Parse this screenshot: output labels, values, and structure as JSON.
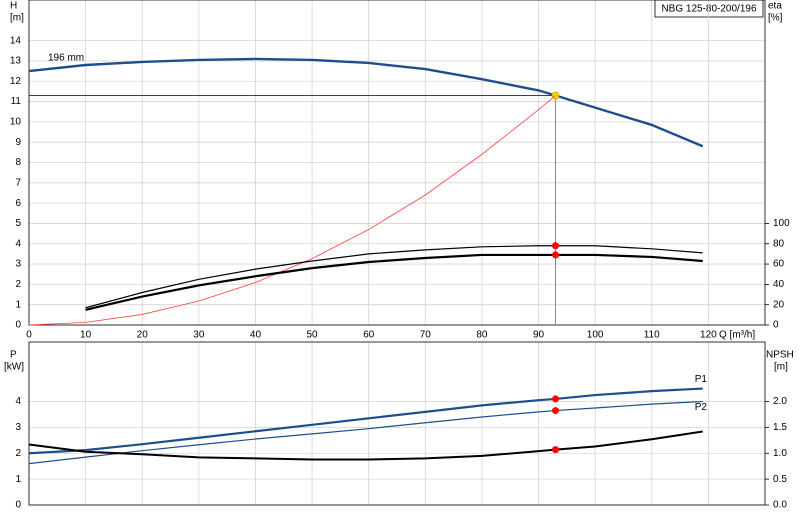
{
  "chart_data": [
    {
      "type": "line",
      "title": "NBG 125-80-200/196",
      "x_label": "Q [m³/h]",
      "y_label": "H",
      "y_unit": "[m]",
      "y2_label": "eta",
      "y2_unit": "[%]",
      "x": [
        0,
        10,
        20,
        30,
        40,
        50,
        60,
        70,
        80,
        90,
        93,
        100,
        110,
        119
      ],
      "xlim": [
        0,
        130
      ],
      "xticks": [
        0,
        10,
        20,
        30,
        40,
        50,
        60,
        70,
        80,
        90,
        100,
        110,
        120
      ],
      "ylim": [
        0,
        16
      ],
      "yticks": [
        0,
        1,
        2,
        3,
        4,
        5,
        6,
        7,
        8,
        9,
        10,
        11,
        12,
        13,
        14
      ],
      "y2lim": [
        0,
        320
      ],
      "y2ticks": [
        0,
        20,
        40,
        60,
        80,
        100
      ],
      "grid": true,
      "duty_point": 93,
      "series": [
        {
          "name": "196 mm",
          "color": "#1f4e8c",
          "line_width": 2.4,
          "marker_color": "#ffd700",
          "values": [
            12.5,
            12.8,
            12.95,
            13.05,
            13.1,
            13.05,
            12.9,
            12.6,
            12.1,
            11.55,
            11.3,
            10.7,
            9.85,
            8.8
          ]
        },
        {
          "color": "#ff4040",
          "line_width": 0.8,
          "values": [
            0,
            0.13,
            0.52,
            1.18,
            2.09,
            3.27,
            4.7,
            6.4,
            8.4,
            10.6,
            11.3,
            null,
            null,
            null
          ]
        },
        {
          "color": "#000000",
          "line_width": 1.2,
          "axis": "y2",
          "marker_color": "#ff0000",
          "values": [
            null,
            17,
            32,
            45,
            55,
            63,
            70,
            74,
            77,
            78,
            78,
            78,
            75,
            71
          ]
        },
        {
          "color": "#000000",
          "line_width": 2.2,
          "axis": "y2",
          "marker_color": "#ff0000",
          "values": [
            null,
            15,
            28,
            39,
            48,
            56,
            62,
            66,
            69,
            69,
            69,
            69,
            67,
            63
          ]
        }
      ]
    },
    {
      "type": "line",
      "y_label": "P",
      "y_unit": "[kW]",
      "y2_label": "NPSH",
      "y2_unit": "[m]",
      "x": [
        0,
        10,
        20,
        30,
        40,
        50,
        60,
        70,
        80,
        90,
        93,
        100,
        110,
        119
      ],
      "ylim": [
        0,
        6.3
      ],
      "yticks": [
        0,
        1,
        2,
        3,
        4
      ],
      "y2lim": [
        0,
        3.15
      ],
      "y2ticks": [
        {
          "value": 0,
          "label": "0.0"
        },
        0.5,
        {
          "value": 1,
          "label": "1.0"
        },
        1.5,
        {
          "value": 2,
          "label": "2.0"
        }
      ],
      "grid": true,
      "duty_point": 93,
      "series": [
        {
          "name": "P1",
          "color": "#1f4e8c",
          "line_width": 2.2,
          "marker_color": "#ff0000",
          "values": [
            2.0,
            2.12,
            2.35,
            2.6,
            2.85,
            3.1,
            3.35,
            3.6,
            3.85,
            4.05,
            4.1,
            4.25,
            4.4,
            4.5
          ]
        },
        {
          "name": "P2",
          "color": "#1f4e8c",
          "line_width": 1.2,
          "marker_color": "#ff0000",
          "values": [
            1.6,
            1.85,
            2.1,
            2.33,
            2.55,
            2.75,
            2.95,
            3.18,
            3.4,
            3.6,
            3.65,
            3.75,
            3.9,
            4.0
          ]
        },
        {
          "color": "#000000",
          "line_width": 2,
          "axis": "y2",
          "marker_color": "#ff0000",
          "values": [
            1.17,
            1.03,
            0.98,
            0.92,
            0.9,
            0.88,
            0.88,
            0.9,
            0.95,
            1.04,
            1.07,
            1.13,
            1.27,
            1.42
          ]
        }
      ]
    }
  ]
}
